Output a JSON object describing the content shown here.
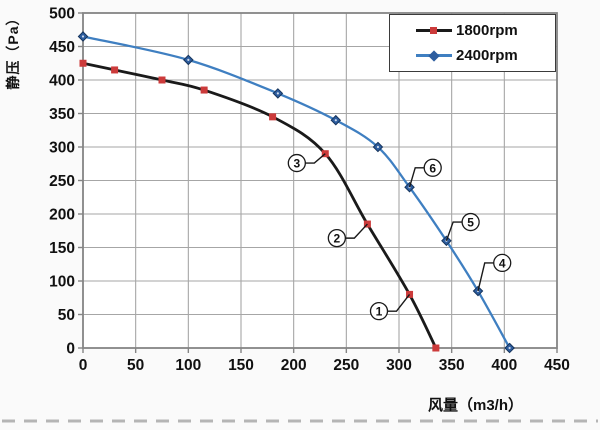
{
  "chart_data": {
    "type": "line",
    "title": "",
    "xlabel": "风量（m3/h）",
    "ylabel": "静压（Pa）",
    "xlim": [
      0,
      450
    ],
    "ylim": [
      0,
      500
    ],
    "x_ticks": [
      0,
      50,
      100,
      150,
      200,
      250,
      300,
      350,
      400,
      450
    ],
    "y_ticks": [
      0,
      50,
      100,
      150,
      200,
      250,
      300,
      350,
      400,
      450,
      500
    ],
    "grid": true,
    "legend_position": "top-right",
    "series": [
      {
        "name": "1800rpm",
        "color": "#1a1a1a",
        "marker": "square",
        "marker_color": "#cc3b3b",
        "points": [
          [
            0,
            425
          ],
          [
            30,
            415
          ],
          [
            75,
            400
          ],
          [
            115,
            385
          ],
          [
            180,
            345
          ],
          [
            230,
            290
          ],
          [
            270,
            185
          ],
          [
            310,
            80
          ],
          [
            335,
            0
          ]
        ]
      },
      {
        "name": "2400rpm",
        "color": "#3f7fc1",
        "marker": "diamond",
        "marker_color": "#2d5d9f",
        "points": [
          [
            0,
            465
          ],
          [
            100,
            430
          ],
          [
            185,
            380
          ],
          [
            240,
            340
          ],
          [
            280,
            300
          ],
          [
            310,
            240
          ],
          [
            345,
            160
          ],
          [
            375,
            85
          ],
          [
            405,
            0
          ]
        ]
      }
    ],
    "annotations": [
      {
        "label": "1",
        "series": 0,
        "point_index": 7,
        "label_x": 281,
        "label_y": 55
      },
      {
        "label": "2",
        "series": 0,
        "point_index": 6,
        "label_x": 241,
        "label_y": 164
      },
      {
        "label": "3",
        "series": 0,
        "point_index": 5,
        "label_x": 203,
        "label_y": 276
      },
      {
        "label": "4",
        "series": 1,
        "point_index": 7,
        "label_x": 398,
        "label_y": 127
      },
      {
        "label": "5",
        "series": 1,
        "point_index": 6,
        "label_x": 368,
        "label_y": 188
      },
      {
        "label": "6",
        "series": 1,
        "point_index": 5,
        "label_x": 332,
        "label_y": 269
      }
    ],
    "colors": {
      "grid": "#a6a6a6",
      "plot_border": "#858585",
      "tick_label": "#111111",
      "annotation": "#1a1a1a",
      "dashed_rule": "#b5b5b5",
      "plot_bg": "#ffffff"
    }
  }
}
